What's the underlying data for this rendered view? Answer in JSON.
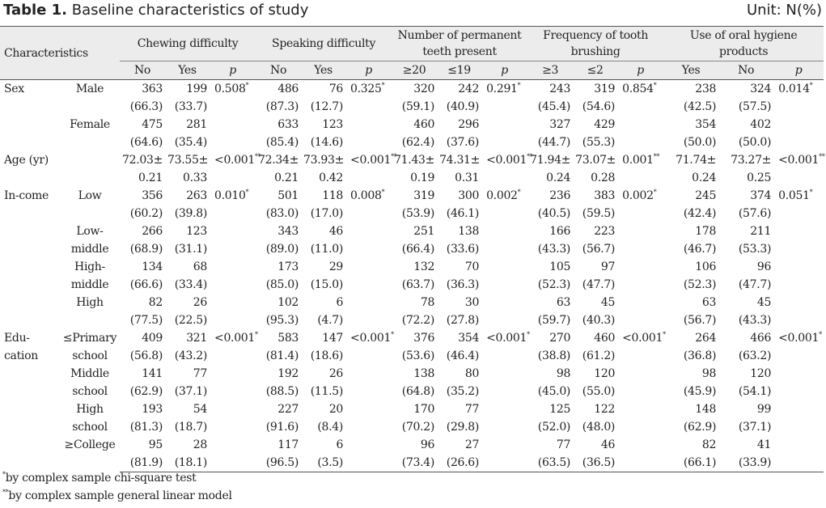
{
  "caption": {
    "label": "Table 1.",
    "text": " Baseline characteristics of study",
    "unit": "Unit: N(%)"
  },
  "header": {
    "characteristics": "Characteristics",
    "groups": [
      "Chewing difficulty",
      "Speaking difficulty",
      "Number of permanent teeth present",
      "Frequency of tooth brushing",
      "Use of oral hygiene products"
    ],
    "sub": [
      [
        "No",
        "Yes",
        "p"
      ],
      [
        "No",
        "Yes",
        "p"
      ],
      [
        "≥20",
        "≤19",
        "p"
      ],
      [
        "≥3",
        "≤2",
        "p"
      ],
      [
        "Yes",
        "No",
        "p"
      ]
    ]
  },
  "rows": [
    {
      "cat": "Sex",
      "sub": "Male",
      "c": [
        [
          "363",
          "(66.3)"
        ],
        [
          "199",
          "(33.7)"
        ],
        [
          "0.508",
          "",
          "*"
        ],
        [
          "486",
          "(87.3)"
        ],
        [
          "76",
          "(12.7)"
        ],
        [
          "0.325",
          "",
          "*"
        ],
        [
          "320",
          "(59.1)"
        ],
        [
          "242",
          "(40.9)"
        ],
        [
          "0.291",
          "",
          "*"
        ],
        [
          "243",
          "(45.4)"
        ],
        [
          "319",
          "(54.6)"
        ],
        [
          "0.854",
          "",
          "*"
        ],
        [
          "238",
          "(42.5)"
        ],
        [
          "324",
          "(57.5)"
        ],
        [
          "0.014",
          "",
          "*"
        ]
      ]
    },
    {
      "cat": "",
      "sub": "Female",
      "c": [
        [
          "475",
          "(64.6)"
        ],
        [
          "281",
          "(35.4)"
        ],
        [
          "",
          "",
          ""
        ],
        [
          "633",
          "(85.4)"
        ],
        [
          "123",
          "(14.6)"
        ],
        [
          "",
          "",
          ""
        ],
        [
          "460",
          "(62.4)"
        ],
        [
          "296",
          "(37.6)"
        ],
        [
          "",
          "",
          ""
        ],
        [
          "327",
          "(44.7)"
        ],
        [
          "429",
          "(55.3)"
        ],
        [
          "",
          "",
          ""
        ],
        [
          "354",
          "(50.0)"
        ],
        [
          "402",
          "(50.0)"
        ],
        [
          "",
          "",
          ""
        ]
      ]
    },
    {
      "cat": "Age (yr)",
      "sub": "",
      "c": [
        [
          "72.03±",
          "0.21"
        ],
        [
          "73.55±",
          "0.33"
        ],
        [
          "<0.001",
          "",
          "**"
        ],
        [
          "72.34±",
          "0.21"
        ],
        [
          "73.93±",
          "0.42"
        ],
        [
          "<0.001",
          "",
          "**"
        ],
        [
          "71.43±",
          "0.19"
        ],
        [
          "74.31±",
          "0.31"
        ],
        [
          "<0.001",
          "",
          "**"
        ],
        [
          "71.94±",
          "0.24"
        ],
        [
          "73.07±",
          "0.28"
        ],
        [
          "0.001",
          "",
          "**"
        ],
        [
          "71.74±",
          "0.24"
        ],
        [
          "73.27±",
          "0.25"
        ],
        [
          "<0.001",
          "",
          "**"
        ]
      ]
    },
    {
      "cat": "In-come",
      "sub": "Low",
      "c": [
        [
          "356",
          "(60.2)"
        ],
        [
          "263",
          "(39.8)"
        ],
        [
          "0.010",
          "",
          "*"
        ],
        [
          "501",
          "(83.0)"
        ],
        [
          "118",
          "(17.0)"
        ],
        [
          "0.008",
          "",
          "*"
        ],
        [
          "319",
          "(53.9)"
        ],
        [
          "300",
          "(46.1)"
        ],
        [
          "0.002",
          "",
          "*"
        ],
        [
          "236",
          "(40.5)"
        ],
        [
          "383",
          "(59.5)"
        ],
        [
          "0.002",
          "",
          "*"
        ],
        [
          "245",
          "(42.4)"
        ],
        [
          "374",
          "(57.6)"
        ],
        [
          "0.051",
          "",
          "*"
        ]
      ]
    },
    {
      "cat": "",
      "sub": "Low-middle",
      "c": [
        [
          "266",
          "(68.9)"
        ],
        [
          "123",
          "(31.1)"
        ],
        [
          "",
          "",
          ""
        ],
        [
          "343",
          "(89.0)"
        ],
        [
          "46",
          "(11.0)"
        ],
        [
          "",
          "",
          ""
        ],
        [
          "251",
          "(66.4)"
        ],
        [
          "138",
          "(33.6)"
        ],
        [
          "",
          "",
          ""
        ],
        [
          "166",
          "(43.3)"
        ],
        [
          "223",
          "(56.7)"
        ],
        [
          "",
          "",
          ""
        ],
        [
          "178",
          "(46.7)"
        ],
        [
          "211",
          "(53.3)"
        ],
        [
          "",
          "",
          ""
        ]
      ]
    },
    {
      "cat": "",
      "sub": "High-middle",
      "c": [
        [
          "134",
          "(66.6)"
        ],
        [
          "68",
          "(33.4)"
        ],
        [
          "",
          "",
          ""
        ],
        [
          "173",
          "(85.0)"
        ],
        [
          "29",
          "(15.0)"
        ],
        [
          "",
          "",
          ""
        ],
        [
          "132",
          "(63.7)"
        ],
        [
          "70",
          "(36.3)"
        ],
        [
          "",
          "",
          ""
        ],
        [
          "105",
          "(52.3)"
        ],
        [
          "97",
          "(47.7)"
        ],
        [
          "",
          "",
          ""
        ],
        [
          "106",
          "(52.3)"
        ],
        [
          "96",
          "(47.7)"
        ],
        [
          "",
          "",
          ""
        ]
      ]
    },
    {
      "cat": "",
      "sub": "High",
      "c": [
        [
          "82",
          "(77.5)"
        ],
        [
          "26",
          "(22.5)"
        ],
        [
          "",
          "",
          ""
        ],
        [
          "102",
          "(95.3)"
        ],
        [
          "6",
          "(4.7)"
        ],
        [
          "",
          "",
          ""
        ],
        [
          "78",
          "(72.2)"
        ],
        [
          "30",
          "(27.8)"
        ],
        [
          "",
          "",
          ""
        ],
        [
          "63",
          "(59.7)"
        ],
        [
          "45",
          "(40.3)"
        ],
        [
          "",
          "",
          ""
        ],
        [
          "63",
          "(56.7)"
        ],
        [
          "45",
          "(43.3)"
        ],
        [
          "",
          "",
          ""
        ]
      ]
    },
    {
      "cat": "Edu-cation",
      "sub": "≤Primary school",
      "c": [
        [
          "409",
          "(56.8)"
        ],
        [
          "321",
          "(43.2)"
        ],
        [
          "<0.001",
          "",
          "*"
        ],
        [
          "583",
          "(81.4)"
        ],
        [
          "147",
          "(18.6)"
        ],
        [
          "<0.001",
          "",
          "*"
        ],
        [
          "376",
          "(53.6)"
        ],
        [
          "354",
          "(46.4)"
        ],
        [
          "<0.001",
          "",
          "*"
        ],
        [
          "270",
          "(38.8)"
        ],
        [
          "460",
          "(61.2)"
        ],
        [
          "<0.001",
          "",
          "*"
        ],
        [
          "264",
          "(36.8)"
        ],
        [
          "466",
          "(63.2)"
        ],
        [
          "<0.001",
          "",
          "*"
        ]
      ]
    },
    {
      "cat": "",
      "sub": "Middle school",
      "c": [
        [
          "141",
          "(62.9)"
        ],
        [
          "77",
          "(37.1)"
        ],
        [
          "",
          "",
          ""
        ],
        [
          "192",
          "(88.5)"
        ],
        [
          "26",
          "(11.5)"
        ],
        [
          "",
          "",
          ""
        ],
        [
          "138",
          "(64.8)"
        ],
        [
          "80",
          "(35.2)"
        ],
        [
          "",
          "",
          ""
        ],
        [
          "98",
          "(45.0)"
        ],
        [
          "120",
          "(55.0)"
        ],
        [
          "",
          "",
          ""
        ],
        [
          "98",
          "(45.9)"
        ],
        [
          "120",
          "(54.1)"
        ],
        [
          "",
          "",
          ""
        ]
      ]
    },
    {
      "cat": "",
      "sub": "High school",
      "c": [
        [
          "193",
          "(81.3)"
        ],
        [
          "54",
          "(18.7)"
        ],
        [
          "",
          "",
          ""
        ],
        [
          "227",
          "(91.6)"
        ],
        [
          "20",
          "(8.4)"
        ],
        [
          "",
          "",
          ""
        ],
        [
          "170",
          "(70.2)"
        ],
        [
          "77",
          "(29.8)"
        ],
        [
          "",
          "",
          ""
        ],
        [
          "125",
          "(52.0)"
        ],
        [
          "122",
          "(48.0)"
        ],
        [
          "",
          "",
          ""
        ],
        [
          "148",
          "(62.9)"
        ],
        [
          "99",
          "(37.1)"
        ],
        [
          "",
          "",
          ""
        ]
      ]
    },
    {
      "cat": "",
      "sub": "≥College",
      "c": [
        [
          "95",
          "(81.9)"
        ],
        [
          "28",
          "(18.1)"
        ],
        [
          "",
          "",
          ""
        ],
        [
          "117",
          "(96.5)"
        ],
        [
          "6",
          "(3.5)"
        ],
        [
          "",
          "",
          ""
        ],
        [
          "96",
          "(73.4)"
        ],
        [
          "27",
          "(26.6)"
        ],
        [
          "",
          "",
          ""
        ],
        [
          "77",
          "(63.5)"
        ],
        [
          "46",
          "(36.5)"
        ],
        [
          "",
          "",
          ""
        ],
        [
          "82",
          "(66.1)"
        ],
        [
          "41",
          "(33.9)"
        ],
        [
          "",
          "",
          ""
        ]
      ]
    }
  ],
  "footnotes": [
    {
      "mark": "*",
      "text": "by complex sample chi-square test"
    },
    {
      "mark": "**",
      "text": "by complex sample general linear model"
    }
  ]
}
